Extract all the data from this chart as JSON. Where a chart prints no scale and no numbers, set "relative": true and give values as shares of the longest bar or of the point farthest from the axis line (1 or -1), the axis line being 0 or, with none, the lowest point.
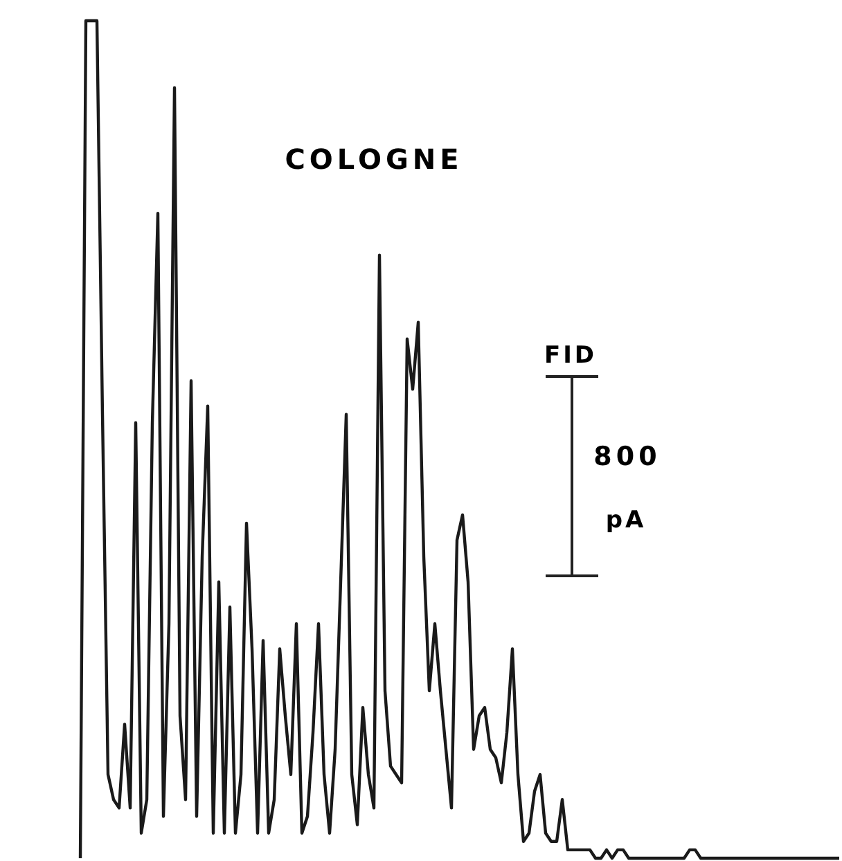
{
  "chart_data": {
    "type": "line",
    "title": "COLOGNE",
    "relative": true,
    "line_style": "solid",
    "annotations": [
      "FID",
      "800",
      "pA"
    ],
    "categories": [
      null,
      null,
      null,
      null,
      null,
      null,
      null,
      null,
      null,
      null,
      null,
      null,
      null,
      null,
      null,
      null,
      null,
      null,
      null,
      null,
      null,
      null,
      null,
      null,
      null,
      null,
      null,
      null,
      null,
      null,
      null,
      null,
      null,
      null,
      null,
      null,
      null,
      null,
      null,
      null,
      null,
      null,
      null,
      null,
      null,
      null,
      null,
      null,
      null,
      null,
      null,
      null,
      null,
      null,
      null,
      null,
      null,
      null,
      null,
      null,
      null,
      null,
      null,
      null,
      null,
      null,
      null,
      null,
      null,
      null,
      null,
      null,
      null,
      null,
      null,
      null,
      null,
      null,
      null,
      null,
      null,
      null,
      null,
      null,
      null,
      null,
      null,
      null,
      null,
      null,
      null,
      null,
      null,
      null,
      null,
      null,
      null,
      null,
      null,
      null,
      null,
      null,
      null,
      null,
      null,
      null,
      null,
      null,
      null,
      null,
      null,
      null,
      null,
      null,
      null,
      null,
      null,
      null,
      null,
      null,
      null,
      null,
      null,
      null,
      null,
      null,
      null,
      null,
      null,
      null,
      null,
      null,
      null,
      null,
      null,
      null,
      null,
      null
    ],
    "series": [
      {
        "color": "#1a1a1a",
        "values": [
          0,
          1,
          1,
          1,
          0.53,
          0.1,
          0.07,
          0.06,
          0.16,
          0.06,
          0.52,
          0.03,
          0.07,
          0.52,
          0.77,
          0.05,
          0.28,
          0.92,
          0.17,
          0.07,
          0.57,
          0.05,
          0.36,
          0.54,
          0.03,
          0.33,
          0.03,
          0.3,
          0.03,
          0.1,
          0.4,
          0.25,
          0.03,
          0.26,
          0.03,
          0.07,
          0.25,
          0.17,
          0.1,
          0.28,
          0.03,
          0.05,
          0.15,
          0.28,
          0.1,
          0.03,
          0.13,
          0.33,
          0.53,
          0.1,
          0.04,
          0.18,
          0.1,
          0.06,
          0.72,
          0.2,
          0.11,
          0.1,
          0.09,
          0.62,
          0.56,
          0.64,
          0.36,
          0.2,
          0.28,
          0.2,
          0.13,
          0.06,
          0.38,
          0.41,
          0.33,
          0.13,
          0.17,
          0.18,
          0.13,
          0.12,
          0.09,
          0.15,
          0.25,
          0.1,
          0.02,
          0.03,
          0.08,
          0.1,
          0.03,
          0.02,
          0.02,
          0.07,
          0.01,
          0.01,
          0.01,
          0.01,
          0.01,
          0,
          0,
          0.01,
          0,
          0.01,
          0.01,
          0,
          0,
          0,
          0,
          0,
          0,
          0,
          0,
          0,
          0,
          0,
          0.01,
          0.01,
          0,
          0,
          0,
          0,
          0,
          0,
          0,
          0,
          0,
          0,
          0,
          0,
          0,
          0,
          0,
          0,
          0,
          0,
          0,
          0,
          0,
          0,
          0,
          0,
          0,
          0
        ]
      }
    ]
  }
}
